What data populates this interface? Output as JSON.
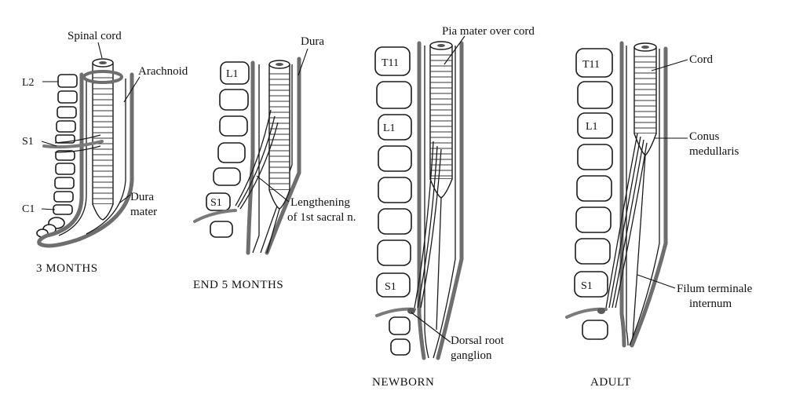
{
  "colors": {
    "background": "#ffffff",
    "ink": "#111111",
    "dura_gray": "#6e6e6e"
  },
  "panels": [
    {
      "caption": "3  MONTHS",
      "vertebra_labels": {
        "l2": "L2",
        "s1": "S1",
        "c1": "C1"
      },
      "annotations": {
        "spinal_cord": "Spinal cord",
        "arachnoid": "Arachnoid",
        "dura_mater_1": "Dura",
        "dura_mater_2": "mater"
      }
    },
    {
      "caption": "END 5 MONTHS",
      "vertebra_labels": {
        "l1": "L1",
        "s1": "S1"
      },
      "annotations": {
        "dura": "Dura",
        "lengthening_1": "Lengthening",
        "lengthening_2": "of 1st sacral n."
      }
    },
    {
      "caption": "NEWBORN",
      "vertebra_labels": {
        "t11": "T11",
        "l1": "L1",
        "s1": "S1"
      },
      "annotations": {
        "pia_mater": "Pia mater over cord",
        "dorsal_root_1": "Dorsal root",
        "dorsal_root_2": "ganglion"
      }
    },
    {
      "caption": "ADULT",
      "vertebra_labels": {
        "t11": "T11",
        "l1": "L1",
        "s1": "S1"
      },
      "annotations": {
        "cord": "Cord",
        "conus_1": "Conus",
        "conus_2": "medullaris",
        "filum_1": "Filum terminale",
        "filum_2": "internum"
      }
    }
  ]
}
